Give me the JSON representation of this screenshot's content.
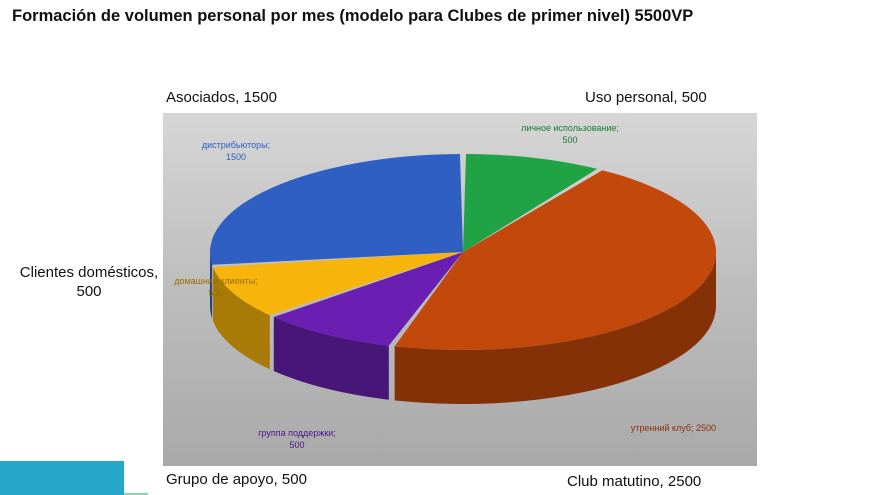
{
  "title": "Formación de volumen personal por mes (modelo para Clubes de primer nivel) 5500VP",
  "outer_labels": {
    "top_left": "Asociados, 1500",
    "top_right": "Uso personal, 500",
    "middle_left": "Clientes domésticos, 500",
    "bottom_left": "Grupo de apoyo, 500",
    "bottom_right": "Club matutino, 2500"
  },
  "chart_data": {
    "type": "pie",
    "title": "Formación de volumen personal por mes (modelo para Clubes de primer nivel) 5500VP",
    "style": "3d",
    "total": 5500,
    "legend": "none",
    "slices": [
      {
        "inner_label": "личное использование;",
        "inner_value": "500",
        "value": 500,
        "color": "#1fa345"
      },
      {
        "inner_label": "утренний клуб;",
        "inner_value": "2500",
        "value": 2500,
        "color": "#c2480c"
      },
      {
        "inner_label": "группа поддержки;",
        "inner_value": "500",
        "value": 500,
        "color": "#6a1fb2"
      },
      {
        "inner_label": "домашние клиенты;",
        "inner_value": "500",
        "value": 500,
        "color": "#f7b40b"
      },
      {
        "inner_label": "дистрибьюторы;",
        "inner_value": "1500",
        "value": 1500,
        "color": "#2f5fc2"
      }
    ]
  }
}
